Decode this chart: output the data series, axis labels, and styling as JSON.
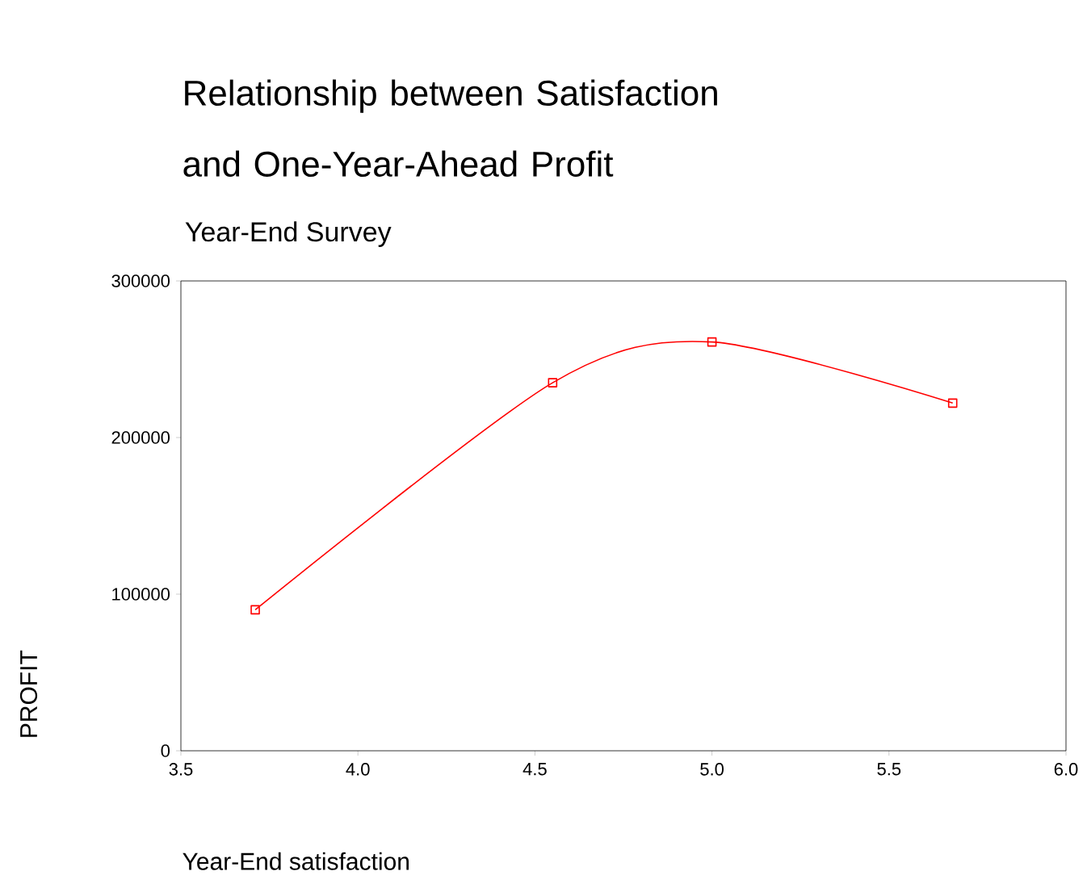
{
  "chart_data": {
    "type": "line",
    "title": "Relationship between Satisfaction and One-Year-Ahead Profit",
    "subtitle": "Year-End Survey",
    "xlabel": "Year-End satisfaction",
    "ylabel": "PROFIT",
    "x": [
      3.71,
      4.55,
      5.0,
      5.68
    ],
    "series": [
      {
        "color": "#ff0000",
        "values": [
          90000,
          235000,
          261000,
          222000
        ]
      }
    ],
    "xlim": [
      3.5,
      6.0
    ],
    "xticks": [
      {
        "value": 3.5,
        "label": "3.5"
      },
      {
        "value": 4.0,
        "label": "4.0"
      },
      {
        "value": 4.5,
        "label": "4.5"
      },
      {
        "value": 5.0,
        "label": "5.0"
      },
      {
        "value": 5.5,
        "label": "5.5"
      },
      {
        "value": 6.0,
        "label": "6.0"
      }
    ],
    "ylim": [
      0,
      300000
    ],
    "yticks": [
      0,
      100000,
      200000,
      300000
    ],
    "marker": "square",
    "line_style": "solid"
  }
}
